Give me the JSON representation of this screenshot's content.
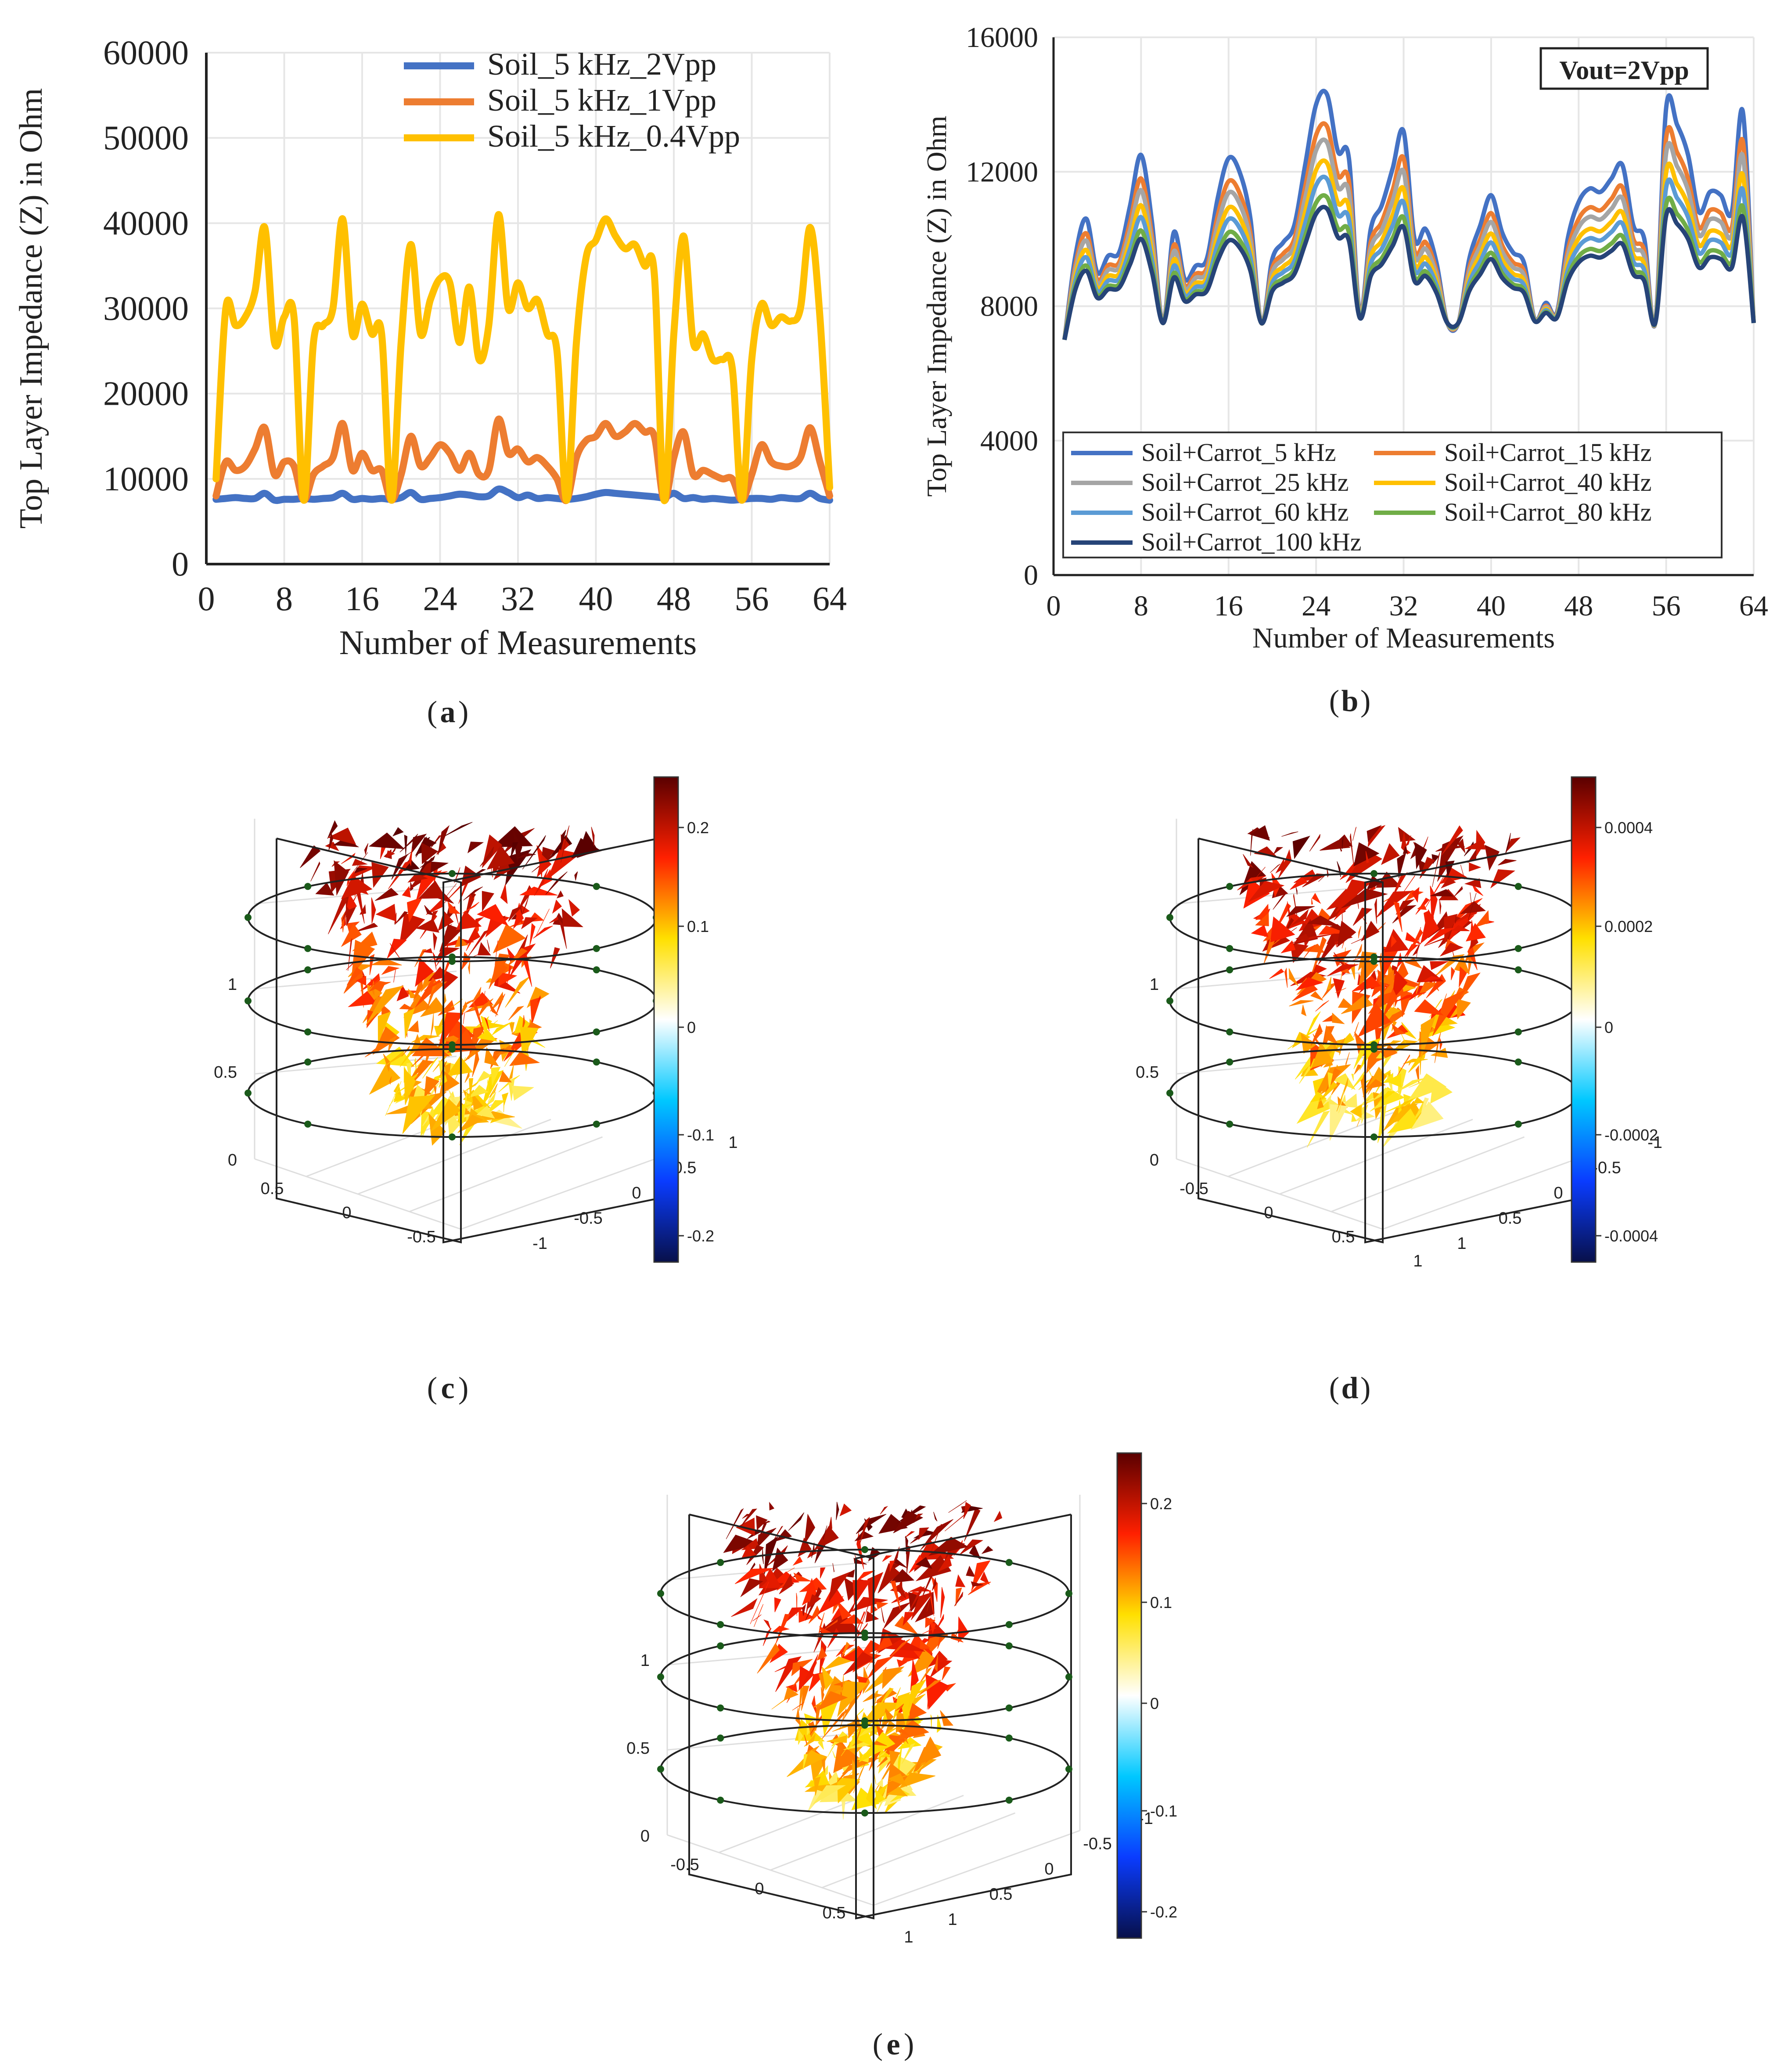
{
  "panel_labels": [
    "a",
    "b",
    "c",
    "d",
    "e"
  ],
  "chart_data": [
    {
      "panel": "a",
      "type": "line",
      "xlabel": "Number of Measurements",
      "ylabel": "Top Layer Impedance (Z) in Ohm",
      "xlim": [
        0,
        64
      ],
      "ylim": [
        0,
        60000
      ],
      "xticks": [
        0,
        8,
        16,
        24,
        32,
        40,
        48,
        56,
        64
      ],
      "yticks": [
        0,
        10000,
        20000,
        30000,
        40000,
        50000,
        60000
      ],
      "grid": true,
      "legend_position": "top-right",
      "series": [
        {
          "name": "Soil_5 kHz_2Vpp",
          "color": "#4472C4",
          "x": [
            1,
            2,
            3,
            4,
            5,
            6,
            7,
            8,
            9,
            10,
            11,
            12,
            13,
            14,
            15,
            16,
            17,
            18,
            19,
            20,
            21,
            22,
            23,
            24,
            25,
            26,
            27,
            28,
            29,
            30,
            31,
            32,
            33,
            34,
            35,
            36,
            37,
            38,
            39,
            40,
            41,
            42,
            43,
            44,
            45,
            46,
            47,
            48,
            49,
            50,
            51,
            52,
            53,
            54,
            55,
            56,
            57,
            58,
            59,
            60,
            61,
            62,
            63,
            64
          ],
          "y": [
            7600,
            7700,
            7800,
            7700,
            7700,
            8300,
            7500,
            7600,
            7600,
            7700,
            7600,
            7700,
            7800,
            8300,
            7600,
            7700,
            7600,
            7700,
            7600,
            7800,
            8400,
            7600,
            7700,
            7800,
            8000,
            8200,
            8100,
            7900,
            8000,
            8800,
            8400,
            7800,
            8100,
            7700,
            7800,
            7700,
            7600,
            7700,
            7900,
            8200,
            8400,
            8300,
            8200,
            8100,
            8000,
            7900,
            7800,
            8300,
            7700,
            7800,
            7600,
            7700,
            7600,
            7500,
            7600,
            7700,
            7700,
            7600,
            7800,
            7700,
            7700,
            8300,
            7700,
            7500
          ]
        },
        {
          "name": "Soil_5 kHz_1Vpp",
          "color": "#ED7D31",
          "x": [
            1,
            2,
            3,
            4,
            5,
            6,
            7,
            8,
            9,
            10,
            11,
            12,
            13,
            14,
            15,
            16,
            17,
            18,
            19,
            20,
            21,
            22,
            23,
            24,
            25,
            26,
            27,
            28,
            29,
            30,
            31,
            32,
            33,
            34,
            35,
            36,
            37,
            38,
            39,
            40,
            41,
            42,
            43,
            44,
            45,
            46,
            47,
            48,
            49,
            50,
            51,
            52,
            53,
            54,
            55,
            56,
            57,
            58,
            59,
            60,
            61,
            62,
            63,
            64
          ],
          "y": [
            8000,
            12000,
            11000,
            11500,
            13500,
            16000,
            10500,
            12000,
            11500,
            7500,
            10500,
            11500,
            12500,
            16500,
            11000,
            13000,
            11000,
            11000,
            7500,
            10500,
            15000,
            11500,
            12500,
            14000,
            13000,
            11000,
            13000,
            10500,
            11000,
            17000,
            13000,
            13500,
            12000,
            12500,
            11500,
            10000,
            7500,
            12500,
            14500,
            15000,
            16500,
            15000,
            15500,
            16500,
            15500,
            15000,
            7500,
            12500,
            15500,
            10500,
            11000,
            10500,
            10000,
            10000,
            7500,
            10500,
            14000,
            12000,
            11500,
            11500,
            12500,
            16000,
            12000,
            8000
          ]
        },
        {
          "name": "Soil_5 kHz_0.4Vpp",
          "color": "#FFC000",
          "x": [
            1,
            2,
            3,
            4,
            5,
            6,
            7,
            8,
            9,
            10,
            11,
            12,
            13,
            14,
            15,
            16,
            17,
            18,
            19,
            20,
            21,
            22,
            23,
            24,
            25,
            26,
            27,
            28,
            29,
            30,
            31,
            32,
            33,
            34,
            35,
            36,
            37,
            38,
            39,
            40,
            41,
            42,
            43,
            44,
            45,
            46,
            47,
            48,
            49,
            50,
            51,
            52,
            53,
            54,
            55,
            56,
            57,
            58,
            59,
            60,
            61,
            62,
            63,
            64
          ],
          "y": [
            10000,
            30000,
            28000,
            29000,
            32000,
            39500,
            26000,
            29000,
            29000,
            7500,
            26000,
            28000,
            30000,
            40500,
            27000,
            30500,
            27000,
            27000,
            7500,
            26000,
            37500,
            27000,
            31000,
            33500,
            33000,
            26000,
            32500,
            24000,
            28000,
            41000,
            30000,
            33000,
            30000,
            31000,
            27000,
            25000,
            7500,
            26000,
            36000,
            38000,
            40500,
            38500,
            37000,
            37500,
            35000,
            34000,
            7500,
            27000,
            38500,
            26000,
            27000,
            24000,
            24000,
            23000,
            7500,
            24000,
            30500,
            28000,
            29000,
            28500,
            30000,
            39500,
            29000,
            9000
          ]
        }
      ]
    },
    {
      "panel": "b",
      "type": "line",
      "xlabel": "Number of Measurements",
      "ylabel": "Top Layer Impedance (Z) in Ohm",
      "xlim": [
        0,
        64
      ],
      "ylim": [
        0,
        16000
      ],
      "xticks": [
        0,
        8,
        16,
        24,
        32,
        40,
        48,
        56,
        64
      ],
      "yticks": [
        0,
        4000,
        8000,
        12000,
        16000
      ],
      "grid": true,
      "annotation": "Vout=2Vpp",
      "legend_position": "bottom",
      "x": [
        1,
        2,
        3,
        4,
        5,
        6,
        7,
        8,
        9,
        10,
        11,
        12,
        13,
        14,
        15,
        16,
        17,
        18,
        19,
        20,
        21,
        22,
        23,
        24,
        25,
        26,
        27,
        28,
        29,
        30,
        31,
        32,
        33,
        34,
        35,
        36,
        37,
        38,
        39,
        40,
        41,
        42,
        43,
        44,
        45,
        46,
        47,
        48,
        49,
        50,
        51,
        52,
        53,
        54,
        55,
        56,
        57,
        58,
        59,
        60,
        61,
        62,
        63,
        64
      ],
      "base_profile": [
        7000,
        9500,
        10600,
        9000,
        9500,
        9600,
        11000,
        12500,
        10500,
        7500,
        10200,
        8800,
        9200,
        9400,
        11200,
        12400,
        12000,
        10600,
        7500,
        9400,
        9900,
        10400,
        12200,
        14000,
        14300,
        12600,
        12400,
        7800,
        10300,
        11000,
        12100,
        13200,
        10000,
        10300,
        9300,
        7500,
        7500,
        9400,
        10400,
        11300,
        10200,
        9600,
        9300,
        7600,
        8100,
        7800,
        10000,
        11100,
        11500,
        11400,
        11800,
        12200,
        10400,
        10000,
        7500,
        13900,
        13400,
        12500,
        10800,
        11400,
        11300,
        10800,
        13800,
        7500
      ],
      "series": [
        {
          "name": "Soil+Carrot_5 kHz",
          "color": "#4472C4",
          "scale": 1.0
        },
        {
          "name": "Soil+Carrot_15 kHz",
          "color": "#ED7D31",
          "scale": 0.86
        },
        {
          "name": "Soil+Carrot_25 kHz",
          "color": "#A5A5A5",
          "scale": 0.79
        },
        {
          "name": "Soil+Carrot_40 kHz",
          "color": "#FFC000",
          "scale": 0.7
        },
        {
          "name": "Soil+Carrot_60 kHz",
          "color": "#5B9BD5",
          "scale": 0.63
        },
        {
          "name": "Soil+Carrot_80 kHz",
          "color": "#70AD47",
          "scale": 0.55
        },
        {
          "name": "Soil+Carrot_100 kHz",
          "color": "#264478",
          "scale": 0.5
        }
      ]
    },
    {
      "panel": "c",
      "type": "heatmap",
      "z_axis_ticks": [
        "0",
        "0.5",
        "1"
      ],
      "ground_ticks_left": [
        "0.5",
        "0",
        "-0.5"
      ],
      "ground_ticks_right": [
        "-1",
        "-0.5",
        "0",
        "0.5",
        "1"
      ],
      "colorbar_ticks": [
        "0.2",
        "0.1",
        "0",
        "-0.1",
        "-0.2"
      ],
      "colormap": [
        "#08104a",
        "#0a3cff",
        "#00c8ff",
        "#ffffff",
        "#ffe000",
        "#ff2000",
        "#5a0000"
      ]
    },
    {
      "panel": "d",
      "type": "heatmap",
      "z_axis_ticks": [
        "0",
        "0.5",
        "1"
      ],
      "ground_ticks_left": [
        "-0.5",
        "0",
        "0.5",
        "1"
      ],
      "ground_ticks_right": [
        "1",
        "0.5",
        "0",
        "-0.5",
        "-1"
      ],
      "colorbar_ticks": [
        "0.0004",
        "0.0002",
        "0",
        "-0.0002",
        "-0.0004"
      ],
      "colormap": [
        "#08104a",
        "#0a3cff",
        "#00c8ff",
        "#ffffff",
        "#ffe000",
        "#ff2000",
        "#5a0000"
      ]
    },
    {
      "panel": "e",
      "type": "heatmap",
      "z_axis_ticks": [
        "0",
        "0.5",
        "1"
      ],
      "ground_ticks_left": [
        "-0.5",
        "0",
        "0.5",
        "1"
      ],
      "ground_ticks_right": [
        "1",
        "0.5",
        "0",
        "-0.5",
        "-1"
      ],
      "colorbar_ticks": [
        "0.2",
        "0.1",
        "0",
        "-0.1",
        "-0.2"
      ],
      "colormap": [
        "#08104a",
        "#0a3cff",
        "#00c8ff",
        "#ffffff",
        "#ffe000",
        "#ff2000",
        "#5a0000"
      ]
    }
  ]
}
